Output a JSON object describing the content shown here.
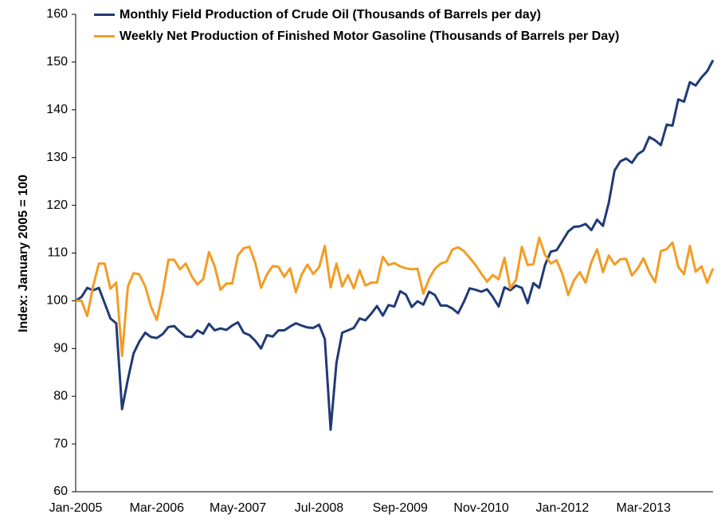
{
  "chart_data": {
    "type": "line",
    "y_label": "Index: January 2005 = 100",
    "categories": [
      "Jan-2005",
      null,
      null,
      null,
      null,
      null,
      null,
      null,
      null,
      null,
      null,
      null,
      null,
      null,
      "Mar-2006",
      null,
      null,
      null,
      null,
      null,
      null,
      null,
      null,
      null,
      null,
      null,
      null,
      null,
      "May-2007",
      null,
      null,
      null,
      null,
      null,
      null,
      null,
      null,
      null,
      null,
      null,
      null,
      null,
      "Jul-2008",
      null,
      null,
      null,
      null,
      null,
      null,
      null,
      null,
      null,
      null,
      null,
      null,
      null,
      "Sep-2009",
      null,
      null,
      null,
      null,
      null,
      null,
      null,
      null,
      null,
      null,
      null,
      null,
      null,
      "Nov-2010",
      null,
      null,
      null,
      null,
      null,
      null,
      null,
      null,
      null,
      null,
      null,
      null,
      null,
      "Jan-2012",
      null,
      null,
      null,
      null,
      null,
      null,
      null,
      null,
      null,
      null,
      null,
      null,
      null,
      "Mar-2013",
      null,
      null,
      null,
      null,
      null,
      null,
      null,
      null,
      null,
      null,
      null,
      null
    ],
    "series": [
      {
        "name": "Monthly Field Production of Crude Oil (Thousands of Barrels per day)",
        "color": "#203a78",
        "values": [
          100,
          100.8,
          102.7,
          102.2,
          102.7,
          99.5,
          96.3,
          95.3,
          77.3,
          83.5,
          89,
          91.5,
          93.3,
          92.4,
          92.2,
          93,
          94.5,
          94.7,
          93.5,
          92.5,
          92.4,
          93.8,
          93.1,
          95.2,
          93.8,
          94.2,
          93.9,
          94.8,
          95.5,
          93.3,
          92.8,
          91.6,
          90,
          92.8,
          92.5,
          93.8,
          93.8,
          94.6,
          95.3,
          94.8,
          94.4,
          94.3,
          95,
          92,
          73,
          87,
          93.3,
          93.8,
          94.3,
          96.3,
          95.9,
          97.3,
          98.9,
          96.9,
          99.1,
          98.8,
          102,
          101.3,
          98.7,
          99.9,
          99.2,
          101.9,
          101.2,
          99,
          99,
          98.4,
          97.4,
          99.8,
          102.6,
          102.3,
          101.9,
          102.4,
          100.8,
          98.8,
          102.8,
          102.2,
          103.2,
          102.7,
          99.5,
          103.7,
          102.7,
          107.5,
          110.3,
          110.6,
          112.5,
          114.5,
          115.5,
          115.6,
          116.1,
          114.8,
          117,
          115.7,
          120.5,
          127.3,
          129.2,
          129.8,
          128.9,
          130.7,
          131.5,
          134.3,
          133.6,
          132.6,
          136.9,
          136.7,
          142.2,
          141.7,
          145.8,
          145.1,
          146.8,
          148.1,
          150.4
        ]
      },
      {
        "name": "Weekly Net Production of Finished Motor Gasoline (Thousands of Barrels per Day)",
        "color": "#f39c24",
        "values": [
          100,
          100,
          96.8,
          103,
          107.8,
          107.8,
          102.5,
          103.8,
          88.5,
          103,
          105.8,
          105.5,
          103,
          98.8,
          96,
          101.5,
          108.6,
          108.6,
          106.6,
          107.8,
          105.2,
          103.4,
          104.5,
          110.2,
          107.2,
          102.3,
          103.6,
          103.6,
          109.5,
          111,
          111.3,
          107.9,
          102.7,
          105.5,
          107.3,
          107.1,
          105,
          106.8,
          101.8,
          105.5,
          107.6,
          105.6,
          107,
          111.5,
          102.8,
          107.8,
          103,
          105.4,
          102.6,
          106.4,
          103.2,
          103.8,
          103.8,
          109.2,
          107.5,
          107.9,
          107.2,
          106.8,
          106.6,
          106.7,
          101.5,
          104.6,
          106.7,
          107.8,
          108.2,
          110.7,
          111.2,
          110.4,
          109,
          107.5,
          105.7,
          104,
          105.4,
          104.5,
          109,
          102.6,
          104.4,
          111.3,
          107.5,
          107.7,
          113.2,
          109.6,
          107.8,
          108.5,
          105.6,
          101.2,
          104.3,
          106,
          103.8,
          108.1,
          110.8,
          106,
          109.5,
          107.6,
          108.7,
          108.8,
          105.3,
          106.8,
          108.9,
          106,
          103.9,
          110.4,
          110.8,
          112.2,
          107.1,
          105.6,
          111.5,
          106.1,
          107.2,
          103.8,
          106.8
        ]
      }
    ],
    "ylim": [
      60,
      160
    ],
    "yticks": [
      60,
      70,
      80,
      90,
      100,
      110,
      120,
      130,
      140,
      150,
      160
    ],
    "grid": false,
    "legend": "top"
  }
}
